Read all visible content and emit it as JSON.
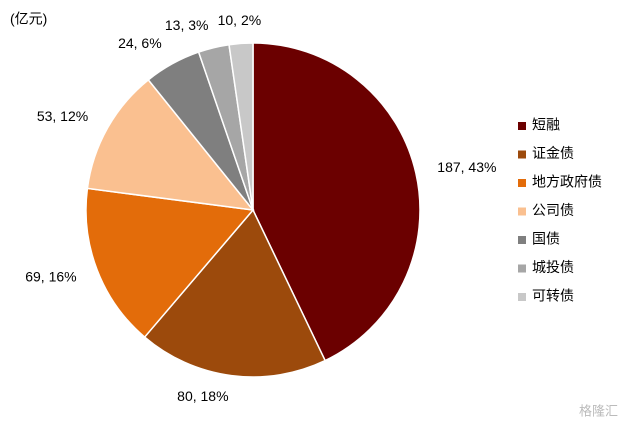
{
  "chart_data": {
    "type": "pie",
    "unit": "(亿元)",
    "categories": [
      "短融",
      "证金债",
      "地方政府债",
      "公司债",
      "国债",
      "城投债",
      "可转债"
    ],
    "values": [
      187,
      80,
      69,
      53,
      24,
      13,
      10
    ],
    "value_labels": [
      "187, 43%",
      "80, 18%",
      "69, 16%",
      "53, 12%",
      "24, 6%",
      "13, 3%",
      "10, 2%"
    ],
    "colors": [
      "#6b0000",
      "#9c4a0c",
      "#e36c0a",
      "#fac090",
      "#7f7f7f",
      "#a6a6a6",
      "#c8c8c8"
    ],
    "legend": "right"
  },
  "watermark": "格隆汇"
}
